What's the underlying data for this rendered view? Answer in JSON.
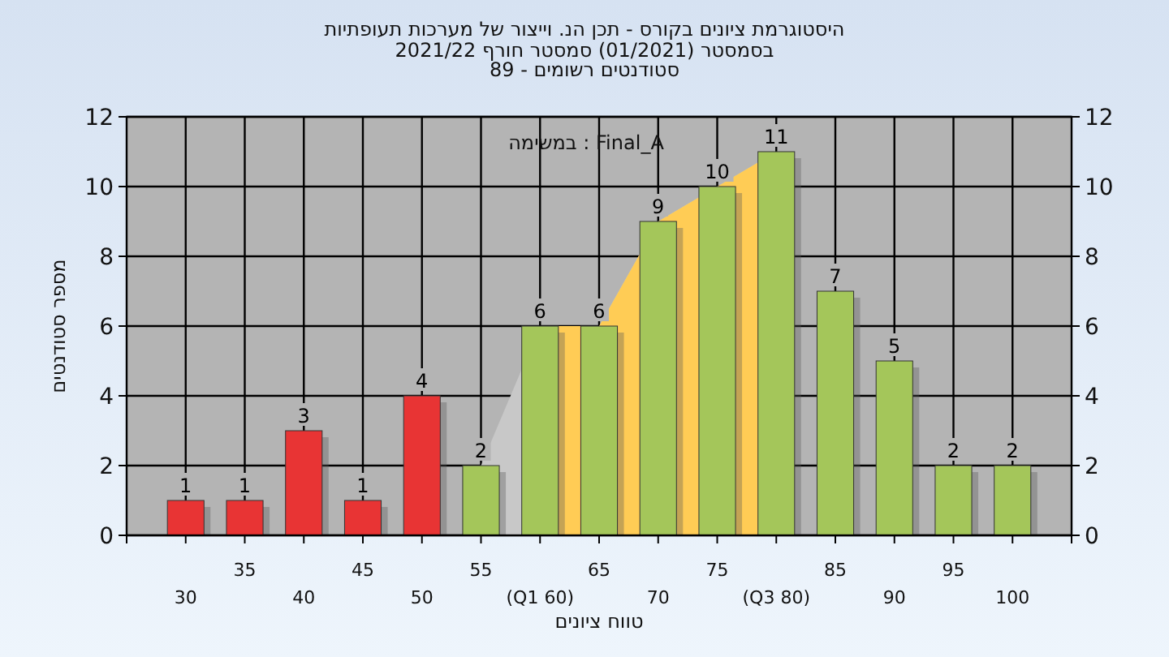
{
  "chart_data": {
    "type": "bar",
    "title": "היסטוגרמת ציונים בקורס - תכן הנ. וייצור של מערכות תעופתיות",
    "subtitle": "בסמסטר  (01/2021)  סמסטר חורף 2021/22\nסטודנטים רשומים - 89",
    "xlabel": "טווח ציונים",
    "ylabel": "מספר סטודנטים",
    "annotations": [
      "במשימה : Final_A"
    ],
    "categories": [
      "30",
      "35",
      "40",
      "45",
      "50",
      "55",
      "(Q1 60)",
      "65",
      "70",
      "75",
      "(Q3 80)",
      "85",
      "90",
      "95",
      "100"
    ],
    "series": [
      {
        "type": "area",
        "color": "#c8c8c8",
        "values": [
          null,
          null,
          null,
          null,
          null,
          2,
          6,
          6,
          9,
          10,
          11,
          null,
          null,
          null,
          null
        ]
      },
      {
        "type": "area",
        "color": "#ffcc55",
        "values": [
          null,
          null,
          null,
          null,
          null,
          null,
          6,
          6,
          9,
          10,
          11,
          null,
          null,
          null,
          null
        ]
      },
      {
        "values": [
          1,
          1,
          3,
          1,
          4,
          2,
          6,
          6,
          9,
          10,
          11,
          7,
          5,
          2,
          2
        ],
        "value_labels": [
          "1",
          "1",
          "3",
          "1",
          "4",
          "2",
          "6",
          "6",
          "9",
          "10",
          "11",
          "7",
          "5",
          "2",
          "2"
        ],
        "colors": [
          "#e83434",
          "#e83434",
          "#e83434",
          "#e83434",
          "#e83434",
          "#a4c65a",
          "#a4c65a",
          "#a4c65a",
          "#a4c65a",
          "#a4c65a",
          "#a4c65a",
          "#a4c65a",
          "#a4c65a",
          "#a4c65a",
          "#a4c65a"
        ]
      }
    ],
    "ylim": [
      0,
      12
    ],
    "yticks": [
      0,
      2,
      4,
      6,
      8,
      10,
      12
    ],
    "y2lim": [
      0,
      12
    ],
    "y2ticks": [
      0,
      2,
      4,
      6,
      8,
      10,
      12
    ],
    "grid": true
  }
}
